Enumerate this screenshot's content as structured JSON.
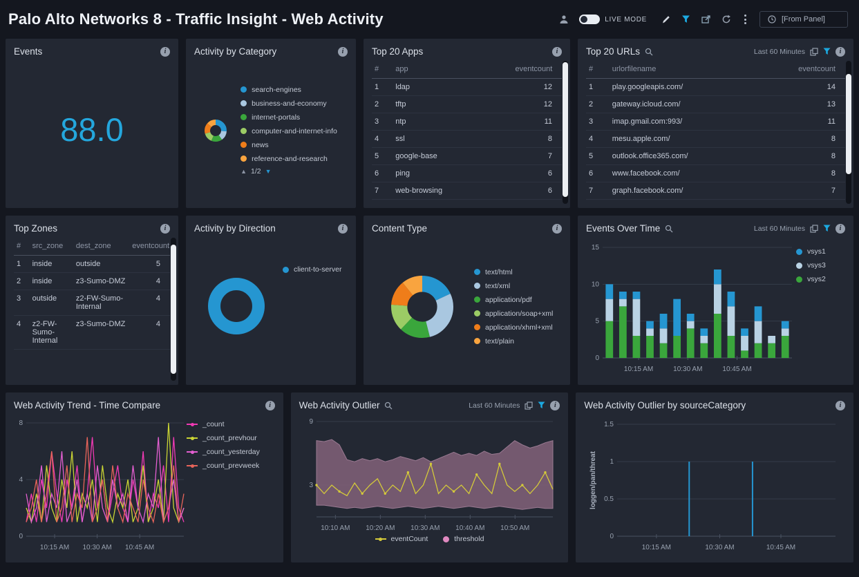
{
  "header": {
    "title": "Palo Alto Networks 8 - Traffic Insight - Web Activity",
    "live_mode": "LIVE MODE",
    "from_panel": "[From Panel]"
  },
  "icons": {
    "up_triangle": "▲",
    "down_triangle": "▼",
    "info": "i"
  },
  "panels": {
    "events": {
      "title": "Events",
      "value": "88.0",
      "value_color": "#24a7dd"
    },
    "activity_by_category": {
      "title": "Activity by Category",
      "pagination": "1/2",
      "legend": [
        {
          "label": "search-engines",
          "color": "#2596d1"
        },
        {
          "label": "business-and-economy",
          "color": "#a9c7e0"
        },
        {
          "label": "internet-portals",
          "color": "#3aa63c"
        },
        {
          "label": "computer-and-internet-info",
          "color": "#9ccc65"
        },
        {
          "label": "news",
          "color": "#ef7d1a"
        },
        {
          "label": "reference-and-research",
          "color": "#f9a43f"
        }
      ]
    },
    "top_20_apps": {
      "title": "Top 20 Apps",
      "table": {
        "columns": [
          "#",
          "app",
          "eventcount"
        ],
        "widths": [
          "11%",
          "63%",
          "26%"
        ],
        "rows": [
          [
            "1",
            "ldap",
            "12"
          ],
          [
            "2",
            "tftp",
            "12"
          ],
          [
            "3",
            "ntp",
            "11"
          ],
          [
            "4",
            "ssl",
            "8"
          ],
          [
            "5",
            "google-base",
            "7"
          ],
          [
            "6",
            "ping",
            "6"
          ],
          [
            "7",
            "web-browsing",
            "6"
          ]
        ]
      }
    },
    "top_20_urls": {
      "title": "Top 20 URLs",
      "time_range": "Last 60 Minutes",
      "table": {
        "columns": [
          "#",
          "urlorfilename",
          "eventcount"
        ],
        "widths": [
          "9%",
          "66%",
          "25%"
        ],
        "rows": [
          [
            "1",
            "play.googleapis.com/",
            "14"
          ],
          [
            "2",
            "gateway.icloud.com/",
            "13"
          ],
          [
            "3",
            "imap.gmail.com:993/",
            "11"
          ],
          [
            "4",
            "mesu.apple.com/",
            "8"
          ],
          [
            "5",
            "outlook.office365.com/",
            "8"
          ],
          [
            "6",
            "www.facebook.com/",
            "8"
          ],
          [
            "7",
            "graph.facebook.com/",
            "7"
          ]
        ]
      }
    },
    "top_zones": {
      "title": "Top Zones",
      "table": {
        "columns": [
          "#",
          "src_zone",
          "dest_zone",
          "eventcount"
        ],
        "widths": [
          "10%",
          "28%",
          "36%",
          "26%"
        ],
        "rows": [
          [
            "1",
            "inside",
            "outside",
            "5"
          ],
          [
            "2",
            "inside",
            "z3-Sumo-DMZ",
            "4"
          ],
          [
            "3",
            "outside",
            "z2-FW-Sumo-Internal",
            "4"
          ],
          [
            "4",
            "z2-FW-Sumo-Internal",
            "z3-Sumo-DMZ",
            "4"
          ]
        ]
      }
    },
    "activity_by_direction": {
      "title": "Activity by Direction",
      "legend": [
        {
          "label": "client-to-server",
          "color": "#2596d1"
        }
      ]
    },
    "content_type": {
      "title": "Content Type",
      "legend": [
        {
          "label": "text/html",
          "color": "#2596d1"
        },
        {
          "label": "text/xml",
          "color": "#a9c7e0"
        },
        {
          "label": "application/pdf",
          "color": "#3aa63c"
        },
        {
          "label": "application/soap+xml",
          "color": "#9ccc65"
        },
        {
          "label": "application/xhml+xml",
          "color": "#ef7d1a"
        },
        {
          "label": "text/plain",
          "color": "#f9a43f"
        }
      ]
    },
    "events_over_time": {
      "title": "Events Over Time",
      "time_range": "Last 60 Minutes",
      "legend": [
        {
          "label": "vsys1",
          "color": "#2596d1"
        },
        {
          "label": "vsys3",
          "color": "#b9d2e4"
        },
        {
          "label": "vsys2",
          "color": "#3aa63c"
        }
      ]
    },
    "trend": {
      "title": "Web Activity Trend - Time Compare",
      "legend": [
        {
          "label": "_count",
          "color": "#f03ab4",
          "marker": "line"
        },
        {
          "label": "_count_prevhour",
          "color": "#c9d434",
          "marker": "line"
        },
        {
          "label": "_count_yesterday",
          "color": "#e35fd1",
          "marker": "line"
        },
        {
          "label": "_count_prevweek",
          "color": "#e8645a",
          "marker": "line"
        }
      ]
    },
    "outlier": {
      "title": "Web Activity Outlier",
      "time_range": "Last 60 Minutes",
      "legend": [
        {
          "label": "eventCount",
          "color": "#d4ca3a",
          "marker": "line"
        },
        {
          "label": "threshold",
          "color": "#e089c0",
          "marker": "dot"
        }
      ]
    },
    "outlier_by_source": {
      "title": "Web Activity Outlier by sourceCategory",
      "ylabel": "loggen/pan/threat"
    }
  },
  "chart_data": [
    {
      "id": "activity_by_category",
      "type": "pie",
      "inner_ratio": 0.5,
      "labels": [
        "search-engines",
        "business-and-economy",
        "internet-portals",
        "computer-and-internet-info",
        "news",
        "reference-and-research"
      ],
      "values": [
        26,
        14,
        16,
        14,
        16,
        14
      ],
      "colors": [
        "#2596d1",
        "#a9c7e0",
        "#3aa63c",
        "#9ccc65",
        "#ef7d1a",
        "#f9a43f"
      ]
    },
    {
      "id": "activity_by_direction",
      "type": "pie",
      "inner_ratio": 0.56,
      "labels": [
        "client-to-server"
      ],
      "values": [
        100
      ],
      "colors": [
        "#2596d1"
      ]
    },
    {
      "id": "content_type",
      "type": "pie",
      "inner_ratio": 0.48,
      "labels": [
        "text/html",
        "text/xml",
        "application/pdf",
        "application/soap+xml",
        "application/xhml+xml",
        "text/plain"
      ],
      "values": [
        18,
        28,
        16,
        14,
        13,
        11
      ],
      "colors": [
        "#2596d1",
        "#a9c7e0",
        "#3aa63c",
        "#9ccc65",
        "#ef7d1a",
        "#f9a43f"
      ]
    },
    {
      "id": "events_over_time",
      "type": "bar",
      "stacked": true,
      "ylim": [
        0,
        15
      ],
      "yticks": [
        0,
        5,
        10,
        15
      ],
      "series": [
        {
          "name": "vsys2",
          "color": "#3aa63c",
          "values": [
            5,
            7,
            3,
            3,
            2,
            3,
            4,
            2,
            6,
            3,
            1,
            2,
            2,
            3
          ]
        },
        {
          "name": "vsys3",
          "color": "#b9d2e4",
          "values": [
            3,
            1,
            5,
            1,
            2,
            0,
            1,
            1,
            4,
            4,
            2,
            3,
            1,
            1
          ]
        },
        {
          "name": "vsys1",
          "color": "#2596d1",
          "values": [
            2,
            1,
            1,
            1,
            2,
            5,
            1,
            1,
            2,
            2,
            1,
            2,
            0,
            1
          ]
        }
      ],
      "xticks": [
        {
          "pos": 0.19,
          "label": "10:15 AM"
        },
        {
          "pos": 0.45,
          "label": "10:30 AM"
        },
        {
          "pos": 0.71,
          "label": "10:45 AM"
        }
      ]
    },
    {
      "id": "trend_time_compare",
      "type": "line",
      "ylim": [
        0,
        8
      ],
      "yticks": [
        0,
        4,
        8
      ],
      "series": [
        {
          "name": "_count",
          "color": "#f03ab4",
          "values": [
            1,
            3,
            1,
            4,
            2,
            6,
            3,
            1,
            4,
            2,
            5,
            1,
            3,
            7,
            2,
            4,
            1,
            3,
            5,
            2,
            1,
            4,
            2,
            6,
            1,
            3,
            2,
            5,
            1,
            7,
            2,
            1
          ]
        },
        {
          "name": "_count_prevhour",
          "color": "#c9d434",
          "values": [
            2,
            1,
            3,
            1,
            5,
            2,
            1,
            4,
            2,
            6,
            1,
            3,
            2,
            4,
            1,
            5,
            2,
            1,
            3,
            2,
            4,
            1,
            2,
            5,
            1,
            2,
            4,
            1,
            8,
            2,
            1,
            2
          ]
        },
        {
          "name": "_count_yesterday",
          "color": "#e35fd1",
          "values": [
            3,
            1,
            2,
            5,
            1,
            3,
            2,
            6,
            1,
            2,
            4,
            1,
            3,
            1,
            5,
            2,
            1,
            4,
            2,
            3,
            1,
            5,
            2,
            1,
            3,
            2,
            7,
            1,
            2,
            4,
            1,
            2
          ]
        },
        {
          "name": "_count_prevweek",
          "color": "#e8645a",
          "values": [
            1,
            2,
            4,
            1,
            3,
            6,
            1,
            2,
            5,
            1,
            3,
            2,
            7,
            1,
            2,
            4,
            1,
            5,
            2,
            1,
            3,
            2,
            1,
            4,
            2,
            1,
            3,
            1,
            2,
            5,
            1,
            3
          ]
        }
      ],
      "xticks": [
        {
          "pos": 0.18,
          "label": "10:15 AM"
        },
        {
          "pos": 0.45,
          "label": "10:30 AM"
        },
        {
          "pos": 0.72,
          "label": "10:45 AM"
        }
      ]
    },
    {
      "id": "outlier",
      "type": "area",
      "ylim": [
        0,
        9
      ],
      "yticks": [
        3,
        9
      ],
      "band": {
        "name": "threshold",
        "color": "#7d5e76",
        "edge": "#9a7a92",
        "upper": [
          7.2,
          7.1,
          7.3,
          6.8,
          5.4,
          5.2,
          5.5,
          5.3,
          5.5,
          5.2,
          5.4,
          5.7,
          5.5,
          5.3,
          5.6,
          5.2,
          5.5,
          5.8,
          6.1,
          5.8,
          6.0,
          5.8,
          6.2,
          5.9,
          6.0,
          6.6,
          7.2,
          6.8,
          6.5,
          6.7,
          7.0,
          7.2
        ],
        "lower": [
          1.1,
          1.1,
          1.0,
          0.9,
          0.8,
          0.9,
          0.8,
          0.9,
          1.0,
          0.9,
          0.8,
          0.9,
          1.0,
          0.9,
          0.8,
          0.9,
          1.0,
          0.9,
          0.8,
          0.9,
          1.0,
          0.9,
          0.8,
          0.9,
          1.0,
          0.9,
          0.8,
          0.7,
          0.8,
          0.9,
          0.8,
          0.8
        ]
      },
      "line": {
        "name": "eventCount",
        "color": "#d4ca3a",
        "values": [
          3,
          2.2,
          3,
          2.4,
          2,
          3.2,
          2.2,
          3,
          3.6,
          2.2,
          3,
          2.4,
          4.2,
          2.2,
          3,
          5,
          2.2,
          3,
          2.4,
          3,
          2.2,
          4,
          3,
          2.2,
          5,
          3,
          2.4,
          3,
          2.2,
          3,
          4.2,
          2.6
        ]
      },
      "xticks": [
        {
          "pos": 0.08,
          "label": "10:10 AM"
        },
        {
          "pos": 0.27,
          "label": "10:20 AM"
        },
        {
          "pos": 0.46,
          "label": "10:30 AM"
        },
        {
          "pos": 0.65,
          "label": "10:40 AM"
        },
        {
          "pos": 0.84,
          "label": "10:50 AM"
        }
      ]
    },
    {
      "id": "outlier_by_source",
      "type": "spike",
      "ylim": [
        0,
        1.5
      ],
      "yticks": [
        0,
        0.5,
        1,
        1.5
      ],
      "ylabel": "loggen/pan/threat",
      "color": "#2596d1",
      "points": [
        {
          "pos": 0.33,
          "value": 1
        },
        {
          "pos": 0.62,
          "value": 1
        }
      ],
      "xticks": [
        {
          "pos": 0.18,
          "label": "10:15 AM"
        },
        {
          "pos": 0.47,
          "label": "10:30 AM"
        },
        {
          "pos": 0.75,
          "label": "10:45 AM"
        }
      ]
    }
  ]
}
